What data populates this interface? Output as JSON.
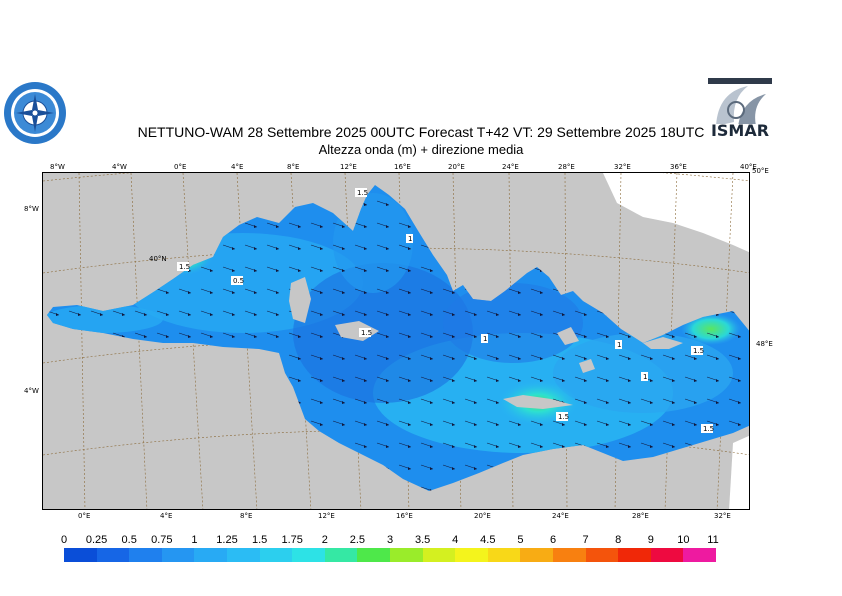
{
  "header": {
    "title_line1": "NETTUNO-WAM  28 Settembre 2025 00UTC Forecast T+42 VT: 29 Settembre 2025 18UTC",
    "title_line2": "Altezza onda (m) + direzione media",
    "logo_right_text": "ISMAR"
  },
  "map": {
    "top_ticks": [
      "8°W",
      "4°W",
      "0°E",
      "4°E",
      "8°E",
      "12°E",
      "16°E",
      "20°E",
      "24°E",
      "28°E",
      "32°E",
      "36°E",
      "40°E"
    ],
    "bottom_ticks": [
      "0°E",
      "4°E",
      "8°E",
      "12°E",
      "16°E",
      "20°E",
      "24°E",
      "28°E",
      "32°E"
    ],
    "left_ticks": [
      "8°W",
      "4°W"
    ],
    "right_ticks": [
      "50°E",
      "48°E"
    ],
    "inner_label": "40°N",
    "contour_labels": [
      "1.5",
      "1",
      "1.5",
      "0.5",
      "1",
      "1.5",
      "1",
      "1.5",
      "1",
      "1.5",
      "1.5"
    ],
    "colors": {
      "land": "#c7c7c7",
      "graticule": "#8b6b3a",
      "sea_low": "#1f6fe6",
      "sea_mid": "#1ea0f0",
      "sea_high": "#23d8e0",
      "peak": "#4fe068"
    }
  },
  "colorbar": {
    "labels": [
      "0",
      "0.25",
      "0.5",
      "0.75",
      "1",
      "1.25",
      "1.5",
      "1.75",
      "2",
      "2.5",
      "3",
      "3.5",
      "4",
      "4.5",
      "5",
      "6",
      "7",
      "8",
      "9",
      "10",
      "11"
    ],
    "colors": [
      "#0a4ed8",
      "#1666e6",
      "#1f80ee",
      "#2596f2",
      "#28aaf4",
      "#2bbcf4",
      "#2ccfee",
      "#2de2e6",
      "#35e8a4",
      "#4ee84a",
      "#9aec2a",
      "#d4f020",
      "#f4f41c",
      "#f8d818",
      "#f8ac14",
      "#f88010",
      "#f4540c",
      "#f02808",
      "#ee0a40",
      "#ee1aa0"
    ]
  }
}
